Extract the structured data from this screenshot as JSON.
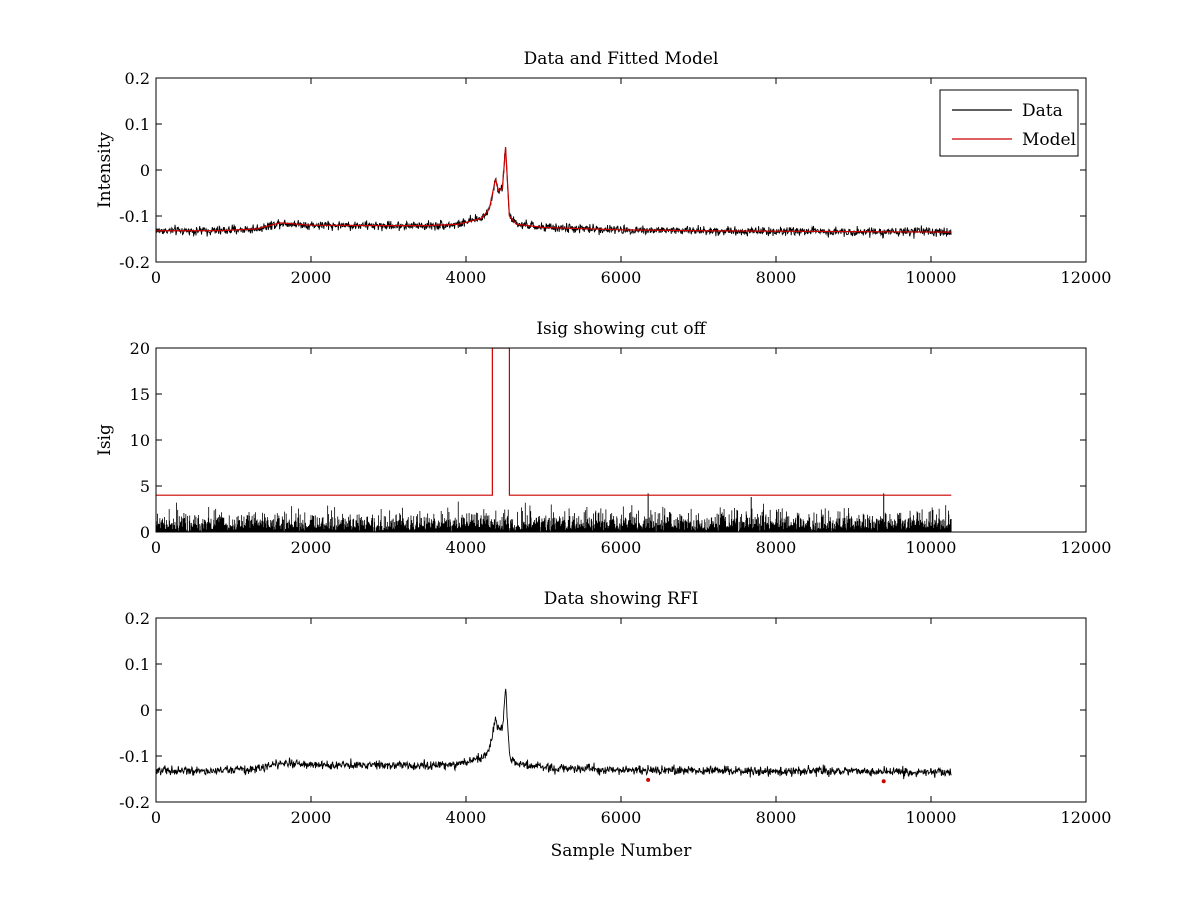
{
  "chart_data": [
    {
      "type": "line",
      "title": "Data and Fitted Model",
      "xlabel": "",
      "ylabel": "Intensity",
      "xlim": [
        0,
        12000
      ],
      "ylim": [
        -0.2,
        0.2
      ],
      "xticks": [
        0,
        2000,
        4000,
        6000,
        8000,
        10000,
        12000
      ],
      "yticks": [
        -0.2,
        -0.1,
        0,
        0.1,
        0.2
      ],
      "xtick_labels": [
        "0",
        "2000",
        "4000",
        "6000",
        "8000",
        "10000",
        "12000"
      ],
      "ytick_labels": [
        "-0.2",
        "-0.1",
        "0",
        "0.1",
        "0.2"
      ],
      "legend": {
        "position": "top-right",
        "entries": [
          "Data",
          "Model"
        ]
      },
      "series": [
        {
          "name": "Data",
          "color": "#000000",
          "style": "noisy-line",
          "noise_amplitude": 0.009,
          "x": [
            0,
            800,
            1300,
            1600,
            2000,
            3000,
            3500,
            3900,
            4200,
            4300,
            4380,
            4420,
            4470,
            4510,
            4560,
            4650,
            5000,
            6000,
            7000,
            8000,
            9000,
            10262
          ],
          "y": [
            -0.132,
            -0.132,
            -0.128,
            -0.115,
            -0.12,
            -0.121,
            -0.121,
            -0.118,
            -0.105,
            -0.085,
            -0.02,
            -0.045,
            -0.04,
            0.05,
            -0.1,
            -0.118,
            -0.125,
            -0.13,
            -0.132,
            -0.133,
            -0.134,
            -0.135
          ]
        },
        {
          "name": "Model",
          "color": "#cc0000",
          "style": "line",
          "x": [
            0,
            800,
            1300,
            1600,
            2000,
            3000,
            3500,
            3900,
            4200,
            4300,
            4380,
            4420,
            4470,
            4510,
            4560,
            4650,
            5000,
            6000,
            7000,
            8000,
            9000,
            10262
          ],
          "y": [
            -0.132,
            -0.132,
            -0.128,
            -0.115,
            -0.12,
            -0.121,
            -0.121,
            -0.118,
            -0.105,
            -0.085,
            -0.02,
            -0.045,
            -0.04,
            0.05,
            -0.1,
            -0.118,
            -0.125,
            -0.13,
            -0.132,
            -0.133,
            -0.134,
            -0.135
          ]
        }
      ]
    },
    {
      "type": "line",
      "title": "Isig showing cut off",
      "xlabel": "",
      "ylabel": "Isig",
      "xlim": [
        0,
        12000
      ],
      "ylim": [
        0,
        20
      ],
      "xticks": [
        0,
        2000,
        4000,
        6000,
        8000,
        10000,
        12000
      ],
      "yticks": [
        0,
        5,
        10,
        15,
        20
      ],
      "xtick_labels": [
        "0",
        "2000",
        "4000",
        "6000",
        "8000",
        "10000",
        "12000"
      ],
      "ytick_labels": [
        "0",
        "5",
        "10",
        "15",
        "20"
      ],
      "series": [
        {
          "name": "Isig",
          "color": "#000000",
          "style": "noise-bars",
          "x_range": [
            0,
            10262
          ],
          "typical_max": 2.4,
          "peak_max": 3.6,
          "spikes": [
            {
              "x": 6350,
              "y": 4.2
            },
            {
              "x": 7680,
              "y": 3.8
            },
            {
              "x": 9390,
              "y": 4.2
            }
          ]
        },
        {
          "name": "Cut off",
          "color": "#cc0000",
          "style": "step",
          "x": [
            0,
            4340,
            4340,
            4560,
            4560,
            10262
          ],
          "y": [
            4,
            4,
            20,
            20,
            4,
            4
          ]
        }
      ]
    },
    {
      "type": "line",
      "title": "Data showing RFI",
      "xlabel": "Sample Number",
      "ylabel": "",
      "xlim": [
        0,
        12000
      ],
      "ylim": [
        -0.2,
        0.2
      ],
      "xticks": [
        0,
        2000,
        4000,
        6000,
        8000,
        10000,
        12000
      ],
      "yticks": [
        -0.2,
        -0.1,
        0,
        0.1,
        0.2
      ],
      "xtick_labels": [
        "0",
        "2000",
        "4000",
        "6000",
        "8000",
        "10000",
        "12000"
      ],
      "ytick_labels": [
        "-0.2",
        "-0.1",
        "0",
        "0.1",
        "0.2"
      ],
      "series": [
        {
          "name": "Data",
          "color": "#000000",
          "style": "noisy-line",
          "noise_amplitude": 0.009,
          "x": [
            0,
            800,
            1300,
            1600,
            2000,
            3000,
            3500,
            3900,
            4200,
            4300,
            4380,
            4420,
            4470,
            4510,
            4560,
            4650,
            5000,
            6000,
            7000,
            8000,
            9000,
            10262
          ],
          "y": [
            -0.132,
            -0.132,
            -0.128,
            -0.115,
            -0.12,
            -0.121,
            -0.121,
            -0.118,
            -0.105,
            -0.085,
            -0.02,
            -0.045,
            -0.04,
            0.05,
            -0.1,
            -0.118,
            -0.125,
            -0.13,
            -0.132,
            -0.133,
            -0.134,
            -0.135
          ]
        },
        {
          "name": "RFI",
          "color": "#cc0000",
          "style": "markers",
          "x": [
            6350,
            9390
          ],
          "y": [
            -0.152,
            -0.155
          ]
        }
      ]
    }
  ]
}
